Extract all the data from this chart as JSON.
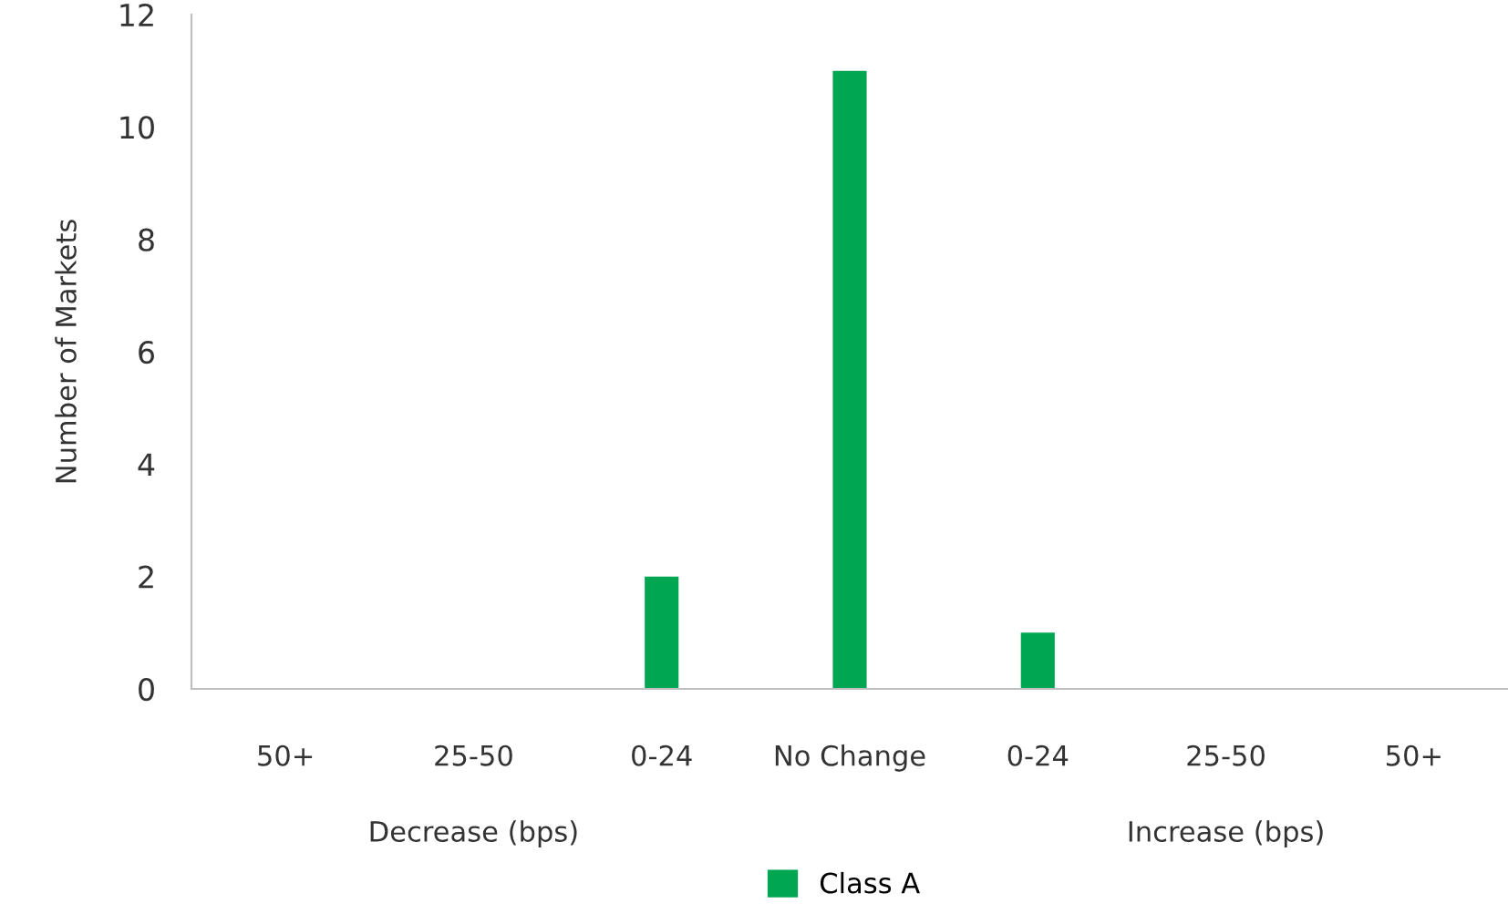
{
  "chart_data": {
    "type": "bar",
    "ylabel": "Number of Markets",
    "categories": [
      "50+",
      "25-50",
      "0-24",
      "No Change",
      "0-24",
      "25-50",
      "50+"
    ],
    "series": [
      {
        "name": "Class A",
        "color": "#00a651",
        "values": [
          0,
          0,
          2,
          11,
          1,
          0,
          0
        ]
      }
    ],
    "ylim": [
      0,
      12
    ],
    "yticks": [
      0,
      2,
      4,
      6,
      8,
      10,
      12
    ],
    "grid": false,
    "legend": "bottom",
    "annotations": [
      "Decrease (bps)",
      "Increase (bps)"
    ]
  }
}
